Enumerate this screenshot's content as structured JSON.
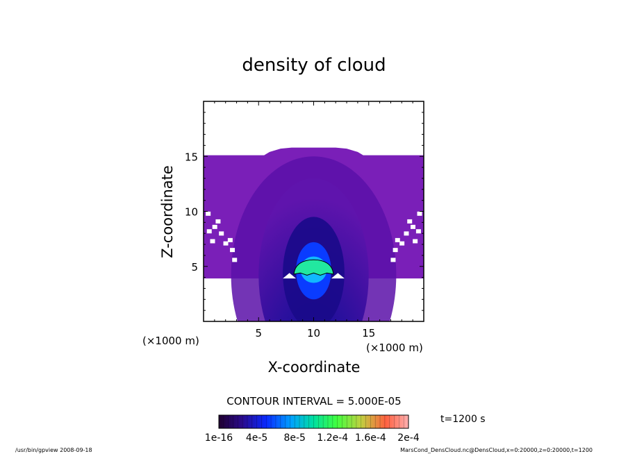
{
  "chart_data": {
    "type": "heatmap",
    "title": "density of cloud",
    "xlabel": "X-coordinate",
    "ylabel": "Z-coordinate",
    "x_unit": "(×1000 m)",
    "y_unit": "(×1000 m)",
    "xlim": [
      0,
      20
    ],
    "ylim": [
      0,
      20
    ],
    "x_ticks": [
      "5",
      "10",
      "15"
    ],
    "y_ticks": [
      "5",
      "10",
      "15"
    ],
    "contour_interval_text": "CONTOUR INTERVAL = 5.000E-05",
    "time_label": "t=1200 s",
    "colorbar": {
      "tick_labels": [
        "1e-16",
        "4e-5",
        "8e-5",
        "1.2e-4",
        "1.6e-4",
        "2e-4"
      ],
      "range": [
        1e-16,
        0.0002
      ]
    },
    "field": {
      "cloud_base_km": 3.9,
      "cloud_top_km": 15.1,
      "dome_top_km": 15.8,
      "dome_x_range_km": [
        5.5,
        14.5
      ],
      "max_density_center": [
        10,
        4.9
      ],
      "max_density_value": 9e-05
    },
    "colors": {
      "outer": "#7a1fb8",
      "mid": "#5a10a8",
      "inner": "#1a0a8a",
      "core": "#0a3cff",
      "peak": "#22e8a0"
    }
  },
  "footer": {
    "left": "/usr/bin/gpview   2008-09-18",
    "right": "MarsCond_DensCloud.nc@DensCloud,x=0:20000,z=0:20000,t=1200"
  }
}
